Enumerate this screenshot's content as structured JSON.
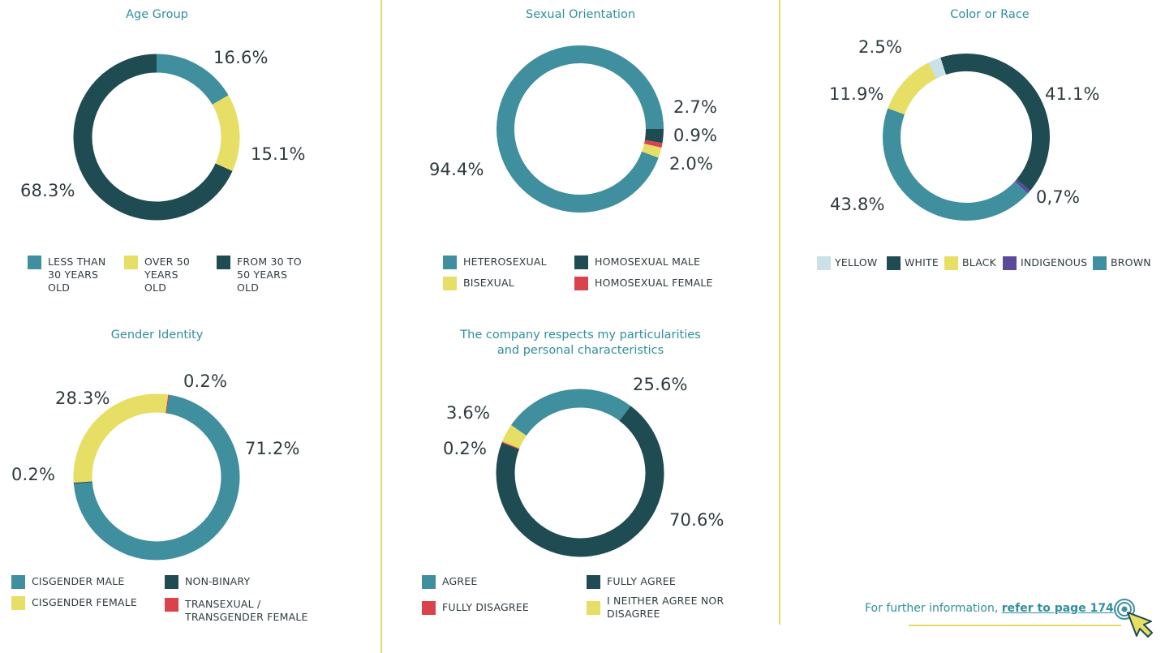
{
  "colors": {
    "teal": "#3f8f9e",
    "dark_teal": "#1f4b52",
    "yellow": "#e6de65",
    "red": "#d9434c",
    "light_blue": "#c9e1e7",
    "purple": "#5b4a9a",
    "title": "#2f8f9c",
    "divider": "#e6d86a"
  },
  "chart_data": [
    {
      "type": "pie",
      "title": "Age Group",
      "slices": [
        {
          "label": "LESS THAN 30 YEARS OLD",
          "value": 16.6,
          "display": "16.6%",
          "color": "#3f8f9e"
        },
        {
          "label": "OVER 50 YEARS OLD",
          "value": 15.1,
          "display": "15.1%",
          "color": "#e6de65"
        },
        {
          "label": "FROM 30 TO 50 YEARS OLD",
          "value": 68.3,
          "display": "68.3%",
          "color": "#1f4b52"
        }
      ],
      "legend": [
        {
          "label": "LESS THAN\n30 YEARS\nOLD",
          "color": "#3f8f9e"
        },
        {
          "label": "OVER 50\nYEARS\nOLD",
          "color": "#e6de65"
        },
        {
          "label": "FROM 30 TO\n50 YEARS\nOLD",
          "color": "#1f4b52"
        }
      ]
    },
    {
      "type": "pie",
      "title": "Sexual Orientation",
      "slices": [
        {
          "label": "HOMOSEXUAL MALE",
          "value": 2.7,
          "display": "2.7%",
          "color": "#1f4b52"
        },
        {
          "label": "HOMOSEXUAL FEMALE",
          "value": 0.9,
          "display": "0.9%",
          "color": "#d9434c"
        },
        {
          "label": "BISEXUAL",
          "value": 2.0,
          "display": "2.0%",
          "color": "#e6de65"
        },
        {
          "label": "HETEROSEXUAL",
          "value": 94.4,
          "display": "94.4%",
          "color": "#3f8f9e"
        }
      ],
      "legend": [
        {
          "label": "HETEROSEXUAL",
          "color": "#3f8f9e"
        },
        {
          "label": "HOMOSEXUAL MALE",
          "color": "#1f4b52"
        },
        {
          "label": "BISEXUAL",
          "color": "#e6de65"
        },
        {
          "label": "HOMOSEXUAL FEMALE",
          "color": "#d9434c"
        }
      ]
    },
    {
      "type": "pie",
      "title": "Color or Race",
      "slices": [
        {
          "label": "WHITE",
          "value": 41.1,
          "display": "41.1%",
          "color": "#1f4b52"
        },
        {
          "label": "INDIGENOUS",
          "value": 0.7,
          "display": "0,7%",
          "color": "#5b4a9a"
        },
        {
          "label": "BROWN",
          "value": 43.8,
          "display": "43.8%",
          "color": "#3f8f9e"
        },
        {
          "label": "BLACK",
          "value": 11.9,
          "display": "11.9%",
          "color": "#e6de65"
        },
        {
          "label": "YELLOW",
          "value": 2.5,
          "display": "2.5%",
          "color": "#c9e1e7"
        }
      ],
      "legend": [
        {
          "label": "YELLOW",
          "color": "#c9e1e7"
        },
        {
          "label": "WHITE",
          "color": "#1f4b52"
        },
        {
          "label": "BLACK",
          "color": "#e6de65"
        },
        {
          "label": "INDIGENOUS",
          "color": "#5b4a9a"
        },
        {
          "label": "BROWN",
          "color": "#3f8f9e"
        }
      ]
    },
    {
      "type": "pie",
      "title": "Gender Identity",
      "slices": [
        {
          "label": "TRANSEXUAL / TRANSGENDER FEMALE",
          "value": 0.2,
          "display": "0.2%",
          "color": "#d9434c"
        },
        {
          "label": "CISGENDER MALE",
          "value": 71.2,
          "display": "71.2%",
          "color": "#3f8f9e"
        },
        {
          "label": "NON-BINARY",
          "value": 0.2,
          "display": "0.2%",
          "color": "#1f4b52"
        },
        {
          "label": "CISGENDER FEMALE",
          "value": 28.3,
          "display": "28.3%",
          "color": "#e6de65"
        }
      ],
      "legend": [
        {
          "label": "CISGENDER MALE",
          "color": "#3f8f9e"
        },
        {
          "label": "NON-BINARY",
          "color": "#1f4b52"
        },
        {
          "label": "CISGENDER FEMALE",
          "color": "#e6de65"
        },
        {
          "label": "TRANSEXUAL /\nTRANSGENDER FEMALE",
          "color": "#d9434c"
        }
      ]
    },
    {
      "type": "pie",
      "title": "The company respects my particularities\nand personal characteristics",
      "slices": [
        {
          "label": "FULLY AGREE",
          "value": 70.6,
          "display": "70.6%",
          "color": "#1f4b52"
        },
        {
          "label": "FULLY DISAGREE",
          "value": 0.2,
          "display": "0.2%",
          "color": "#d9434c"
        },
        {
          "label": "I NEITHER AGREE NOR DISAGREE",
          "value": 3.6,
          "display": "3.6%",
          "color": "#e6de65"
        },
        {
          "label": "AGREE",
          "value": 25.6,
          "display": "25.6%",
          "color": "#3f8f9e"
        }
      ],
      "legend": [
        {
          "label": "AGREE",
          "color": "#3f8f9e"
        },
        {
          "label": "FULLY AGREE",
          "color": "#1f4b52"
        },
        {
          "label": "FULLY DISAGREE",
          "color": "#d9434c"
        },
        {
          "label": "I NEITHER AGREE NOR\nDISAGREE",
          "color": "#e6de65"
        }
      ]
    }
  ],
  "footer": {
    "text": "For further information, ",
    "link": "refer to page 174",
    "end": "."
  },
  "icons": {
    "footer": "click-pointer-icon"
  }
}
